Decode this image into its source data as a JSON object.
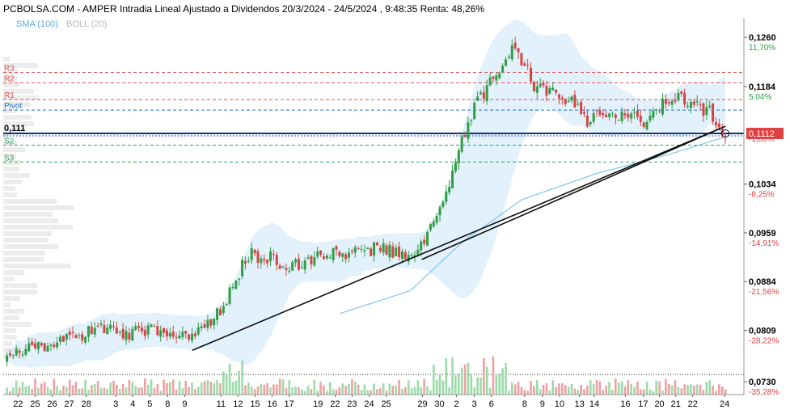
{
  "header": {
    "title": "PCBOLSA.COM - AMPER Intradia Lineal Ajustado a Dividendos 20/3/2024 - 24/5/2024 , 9:48:35 Renta: 48,26%",
    "legend_sma": "SMA (100)",
    "legend_boll": "BOLL (20)"
  },
  "levels": [
    {
      "label": "R3",
      "value": 0.1206,
      "color": "#e05050"
    },
    {
      "label": "R2",
      "value": 0.119,
      "color": "#e05050"
    },
    {
      "label": "R1",
      "value": 0.1164,
      "color": "#e05050"
    },
    {
      "label": "Pivot",
      "value": 0.1148,
      "color": "#2070c0"
    },
    {
      "label": "S2",
      "value": 0.1094,
      "color": "#30a060"
    },
    {
      "label": "S3",
      "value": 0.1068,
      "color": "#30a060"
    }
  ],
  "current": {
    "label": "0,111",
    "value": 0.1112,
    "value_text": "0,1112"
  },
  "axis_ticks": [
    {
      "value": 0.126,
      "label": "0,1260",
      "pct": "11,70%",
      "pct_color": "#20a040"
    },
    {
      "value": 0.1184,
      "label": "0,1184",
      "pct": "5,04%",
      "pct_color": "#20a040"
    },
    {
      "value": 0.1034,
      "label": "0,1034",
      "pct": "-8,25%",
      "pct_color": "#e04040"
    },
    {
      "value": 0.0959,
      "label": "0,0959",
      "pct": "-14,91%",
      "pct_color": "#e04040"
    },
    {
      "value": 0.0884,
      "label": "0,0884",
      "pct": "-21,56%",
      "pct_color": "#e04040"
    },
    {
      "value": 0.0809,
      "label": "0,0809",
      "pct": "-28,22%",
      "pct_color": "#e04040"
    },
    {
      "value": 0.073,
      "label": "0,0730",
      "pct": "-35,28%",
      "pct_color": "#e04040"
    }
  ],
  "hidden_pct": "-1,80%",
  "chart_data": {
    "type": "candlestick",
    "title": "PCBOLSA.COM - AMPER Intradia Lineal Ajustado a Dividendos 20/3/2024 - 24/5/2024 , 9:48:35 Renta: 48,26%",
    "ylim": [
      0.071,
      0.129
    ],
    "x_labels": [
      "22",
      "25",
      "26",
      "27",
      "28",
      "3",
      "4",
      "5",
      "8",
      "9",
      "11",
      "12",
      "15",
      "16",
      "17",
      "19",
      "22",
      "23",
      "24",
      "25",
      "29",
      "30",
      "2",
      "3",
      "6",
      "8",
      "9",
      "10",
      "13",
      "14",
      "16",
      "17",
      "20",
      "21",
      "22",
      "24"
    ],
    "x_label_pos": [
      0.02,
      0.043,
      0.066,
      0.089,
      0.112,
      0.152,
      0.175,
      0.198,
      0.222,
      0.245,
      0.294,
      0.317,
      0.34,
      0.363,
      0.386,
      0.425,
      0.448,
      0.471,
      0.494,
      0.517,
      0.566,
      0.589,
      0.612,
      0.636,
      0.659,
      0.704,
      0.728,
      0.751,
      0.778,
      0.798,
      0.84,
      0.864,
      0.886,
      0.908,
      0.931,
      0.974
    ],
    "close_anchors": [
      [
        0.0,
        0.076
      ],
      [
        0.03,
        0.0778
      ],
      [
        0.07,
        0.079
      ],
      [
        0.1,
        0.08
      ],
      [
        0.14,
        0.0814
      ],
      [
        0.17,
        0.0804
      ],
      [
        0.21,
        0.081
      ],
      [
        0.245,
        0.0798
      ],
      [
        0.27,
        0.0808
      ],
      [
        0.3,
        0.085
      ],
      [
        0.33,
        0.0925
      ],
      [
        0.36,
        0.0922
      ],
      [
        0.38,
        0.0904
      ],
      [
        0.42,
        0.0918
      ],
      [
        0.45,
        0.0927
      ],
      [
        0.49,
        0.0934
      ],
      [
        0.52,
        0.0933
      ],
      [
        0.55,
        0.0925
      ],
      [
        0.57,
        0.0948
      ],
      [
        0.6,
        0.102
      ],
      [
        0.62,
        0.11
      ],
      [
        0.64,
        0.116
      ],
      [
        0.66,
        0.1195
      ],
      [
        0.69,
        0.1245
      ],
      [
        0.72,
        0.118
      ],
      [
        0.75,
        0.117
      ],
      [
        0.78,
        0.115
      ],
      [
        0.79,
        0.113
      ],
      [
        0.82,
        0.1145
      ],
      [
        0.85,
        0.114
      ],
      [
        0.87,
        0.113
      ],
      [
        0.89,
        0.1155
      ],
      [
        0.91,
        0.117
      ],
      [
        0.93,
        0.116
      ],
      [
        0.96,
        0.114
      ],
      [
        0.97,
        0.1112
      ]
    ],
    "sma_100": [
      [
        0.455,
        0.0835
      ],
      [
        0.55,
        0.087
      ],
      [
        0.62,
        0.0945
      ],
      [
        0.7,
        0.101
      ],
      [
        0.8,
        0.105
      ],
      [
        0.9,
        0.108
      ],
      [
        0.97,
        0.1105
      ]
    ],
    "trendlines": [
      {
        "from": [
          0.255,
          0.0778
        ],
        "to": [
          0.975,
          0.1123
        ]
      },
      {
        "from": [
          0.565,
          0.0918
        ],
        "to": [
          0.975,
          0.1123
        ]
      }
    ],
    "support_dotted": 0.0741,
    "grid": false
  }
}
